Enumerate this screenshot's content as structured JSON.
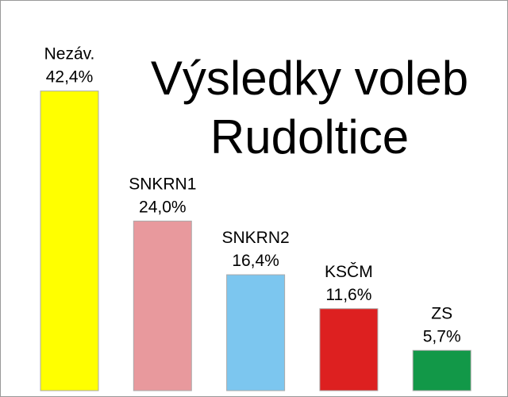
{
  "chart_data": {
    "type": "bar",
    "title": "Výsledky voleb Rudoltice",
    "categories": [
      "Nezáv.",
      "SNKRN1",
      "SNKRN2",
      "KSČM",
      "ZS"
    ],
    "values": [
      42.4,
      24.0,
      16.4,
      11.6,
      5.7
    ],
    "value_labels": [
      "42,4%",
      "24,0%",
      "16,4%",
      "11,6%",
      "5,7%"
    ],
    "colors": [
      "#ffff00",
      "#e8999d",
      "#7cc6ef",
      "#dd2020",
      "#129848"
    ]
  }
}
